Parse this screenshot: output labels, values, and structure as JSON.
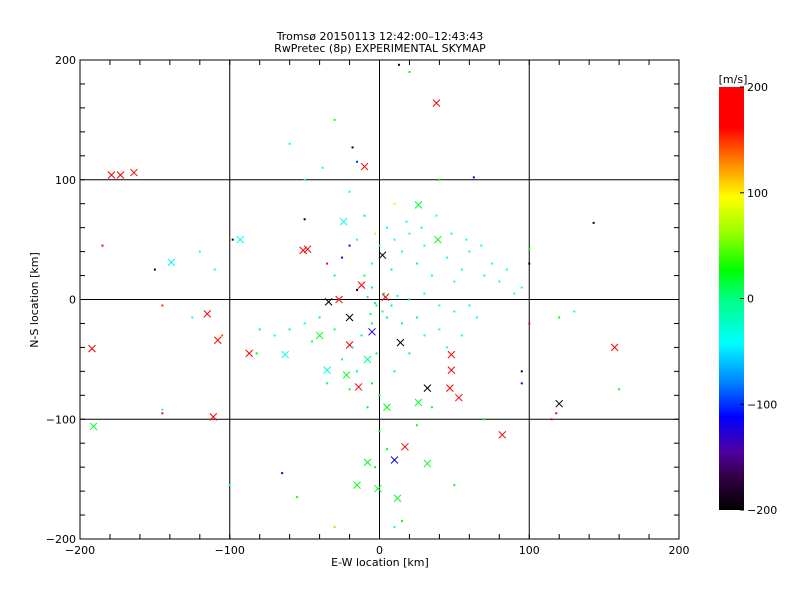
{
  "chart_data": {
    "type": "scatter",
    "title": "Tromsø 20150113 12:42:00–12:43:43",
    "subtitle": "RwPretec (8p) EXPERIMENTAL SKYMAP",
    "xlabel": "E-W location [km]",
    "ylabel": "N-S location [km]",
    "xlim": [
      -200,
      200
    ],
    "ylim": [
      -200,
      200
    ],
    "xticks": [
      "−200",
      "−100",
      "0",
      "100",
      "200"
    ],
    "yticks": [
      "−200",
      "−100",
      "0",
      "100",
      "200"
    ],
    "xtick_values": [
      -200,
      -100,
      0,
      100,
      200
    ],
    "ytick_values": [
      -200,
      -100,
      0,
      100,
      200
    ],
    "grid": true,
    "colorbar": {
      "label": "[m/s]",
      "range": [
        -200,
        200
      ],
      "ticks": [
        "200",
        "100",
        "0",
        "−100",
        "−200"
      ],
      "tick_values": [
        200,
        100,
        0,
        -100,
        -200
      ],
      "stops": [
        [
          -200,
          "#000000"
        ],
        [
          -170,
          "#300040"
        ],
        [
          -145,
          "#5000a0"
        ],
        [
          -112,
          "#0000ff"
        ],
        [
          -80,
          "#0080ff"
        ],
        [
          -42,
          "#00ffff"
        ],
        [
          0,
          "#00ff80"
        ],
        [
          27,
          "#00ff00"
        ],
        [
          60,
          "#90ff00"
        ],
        [
          96,
          "#ffff00"
        ],
        [
          130,
          "#ff8000"
        ],
        [
          162,
          "#ff0000"
        ],
        [
          200,
          "#ff0000"
        ]
      ]
    },
    "marker_legend": "x = large echo, d = small point",
    "points": [
      [
        38,
        164,
        200,
        "x"
      ],
      [
        -10,
        111,
        200,
        "x"
      ],
      [
        -179,
        104,
        200,
        "x"
      ],
      [
        -173,
        104,
        200,
        "x"
      ],
      [
        -164,
        106,
        200,
        "x"
      ],
      [
        -93,
        50,
        -40,
        "x"
      ],
      [
        -139,
        31,
        -45,
        "x"
      ],
      [
        -48,
        42,
        200,
        "x"
      ],
      [
        -51,
        41,
        180,
        "x"
      ],
      [
        -24,
        65,
        -40,
        "x"
      ],
      [
        2,
        37,
        -200,
        "x"
      ],
      [
        -34,
        -2,
        -200,
        "x"
      ],
      [
        -115,
        -12,
        200,
        "x"
      ],
      [
        -108,
        -34,
        200,
        "x"
      ],
      [
        -87,
        -45,
        200,
        "x"
      ],
      [
        -192,
        -41,
        200,
        "x"
      ],
      [
        -191,
        -106,
        20,
        "x"
      ],
      [
        -111,
        -98,
        200,
        "x"
      ],
      [
        14,
        -36,
        -200,
        "x"
      ],
      [
        32,
        -74,
        -200,
        "x"
      ],
      [
        48,
        -46,
        200,
        "x"
      ],
      [
        48,
        -59,
        200,
        "x"
      ],
      [
        47,
        -74,
        200,
        "x"
      ],
      [
        53,
        -82,
        200,
        "x"
      ],
      [
        82,
        -113,
        200,
        "x"
      ],
      [
        120,
        -87,
        -200,
        "x"
      ],
      [
        157,
        -40,
        200,
        "x"
      ],
      [
        17,
        -123,
        200,
        "x"
      ],
      [
        32,
        -137,
        20,
        "x"
      ],
      [
        10,
        -134,
        -115,
        "x"
      ],
      [
        -14,
        -73,
        200,
        "x"
      ],
      [
        -20,
        -38,
        200,
        "x"
      ],
      [
        26,
        -86,
        20,
        "x"
      ],
      [
        5,
        -90,
        20,
        "x"
      ],
      [
        -22,
        -63,
        20,
        "x"
      ],
      [
        -35,
        -59,
        -30,
        "x"
      ],
      [
        -63,
        -46,
        -40,
        "x"
      ],
      [
        12,
        -166,
        20,
        "x"
      ],
      [
        -1,
        -158,
        20,
        "x"
      ],
      [
        -8,
        -136,
        20,
        "x"
      ],
      [
        -15,
        -155,
        20,
        "x"
      ],
      [
        39,
        50,
        20,
        "x"
      ],
      [
        26,
        79,
        20,
        "x"
      ],
      [
        -12,
        12,
        200,
        "x"
      ],
      [
        -27,
        0,
        200,
        "x"
      ],
      [
        -20,
        -15,
        -200,
        "x"
      ],
      [
        4,
        2,
        200,
        "x"
      ],
      [
        -5,
        -27,
        -120,
        "x"
      ],
      [
        -8,
        -50,
        0,
        "x"
      ],
      [
        -40,
        -30,
        20,
        "x"
      ],
      [
        -15,
        8,
        -200,
        "d"
      ],
      [
        13,
        196,
        -200,
        "d"
      ],
      [
        20,
        190,
        20,
        "d"
      ],
      [
        -18,
        127,
        -200,
        "d"
      ],
      [
        -15,
        115,
        -100,
        "d"
      ],
      [
        -50,
        67,
        -200,
        "d"
      ],
      [
        -98,
        50,
        -200,
        "d"
      ],
      [
        -150,
        25,
        -200,
        "d"
      ],
      [
        -185,
        45,
        180,
        "d"
      ],
      [
        -120,
        40,
        -40,
        "d"
      ],
      [
        -110,
        25,
        -40,
        "d"
      ],
      [
        -145,
        -5,
        150,
        "d"
      ],
      [
        -105,
        -30,
        140,
        "d"
      ],
      [
        -145,
        -95,
        200,
        "d"
      ],
      [
        -145,
        -92,
        -40,
        "d"
      ],
      [
        -125,
        -15,
        -40,
        "d"
      ],
      [
        -82,
        -45,
        20,
        "d"
      ],
      [
        -65,
        -145,
        -112,
        "d"
      ],
      [
        -55,
        -165,
        20,
        "d"
      ],
      [
        -30,
        -190,
        60,
        "d"
      ],
      [
        -100,
        -155,
        -40,
        "d"
      ],
      [
        10,
        -190,
        -40,
        "d"
      ],
      [
        15,
        -185,
        20,
        "d"
      ],
      [
        50,
        -155,
        20,
        "d"
      ],
      [
        70,
        -100,
        20,
        "d"
      ],
      [
        95,
        -60,
        -200,
        "d"
      ],
      [
        95,
        -70,
        -112,
        "d"
      ],
      [
        115,
        -100,
        200,
        "d"
      ],
      [
        118,
        -95,
        200,
        "d"
      ],
      [
        100,
        -20,
        200,
        "d"
      ],
      [
        120,
        -15,
        20,
        "d"
      ],
      [
        130,
        -10,
        -40,
        "d"
      ],
      [
        160,
        -75,
        20,
        "d"
      ],
      [
        143,
        64,
        -200,
        "d"
      ],
      [
        100,
        30,
        -200,
        "d"
      ],
      [
        100,
        42,
        20,
        "d"
      ],
      [
        95,
        10,
        -40,
        "d"
      ],
      [
        63,
        102,
        -112,
        "d"
      ],
      [
        40,
        100,
        20,
        "d"
      ],
      [
        -30,
        150,
        20,
        "d"
      ],
      [
        -60,
        130,
        -40,
        "d"
      ],
      [
        -50,
        100,
        -40,
        "d"
      ],
      [
        -20,
        90,
        -40,
        "d"
      ],
      [
        10,
        80,
        100,
        "d"
      ],
      [
        -38,
        110,
        -40,
        "d"
      ],
      [
        -10,
        70,
        0,
        "d"
      ],
      [
        5,
        60,
        -40,
        "d"
      ],
      [
        20,
        55,
        -40,
        "d"
      ],
      [
        30,
        45,
        -40,
        "d"
      ],
      [
        45,
        35,
        -40,
        "d"
      ],
      [
        55,
        25,
        -40,
        "d"
      ],
      [
        60,
        40,
        -40,
        "d"
      ],
      [
        70,
        20,
        -40,
        "d"
      ],
      [
        80,
        15,
        -40,
        "d"
      ],
      [
        50,
        15,
        -40,
        "d"
      ],
      [
        35,
        20,
        -40,
        "d"
      ],
      [
        25,
        30,
        0,
        "d"
      ],
      [
        15,
        40,
        -40,
        "d"
      ],
      [
        8,
        25,
        0,
        "d"
      ],
      [
        -5,
        30,
        -40,
        "d"
      ],
      [
        -10,
        20,
        0,
        "d"
      ],
      [
        -5,
        10,
        0,
        "d"
      ],
      [
        3,
        5,
        0,
        "d"
      ],
      [
        8,
        -5,
        0,
        "d"
      ],
      [
        -3,
        -3,
        0,
        "d"
      ],
      [
        -8,
        2,
        0,
        "d"
      ],
      [
        12,
        3,
        -40,
        "d"
      ],
      [
        20,
        0,
        0,
        "d"
      ],
      [
        30,
        5,
        -40,
        "d"
      ],
      [
        40,
        -5,
        -40,
        "d"
      ],
      [
        50,
        -10,
        -40,
        "d"
      ],
      [
        60,
        -5,
        -40,
        "d"
      ],
      [
        25,
        -15,
        0,
        "d"
      ],
      [
        15,
        -20,
        0,
        "d"
      ],
      [
        5,
        -15,
        0,
        "d"
      ],
      [
        -5,
        -20,
        0,
        "d"
      ],
      [
        -12,
        -30,
        0,
        "d"
      ],
      [
        -18,
        -40,
        0,
        "d"
      ],
      [
        -25,
        -50,
        0,
        "d"
      ],
      [
        -30,
        -25,
        0,
        "d"
      ],
      [
        -40,
        -15,
        0,
        "d"
      ],
      [
        -50,
        -20,
        -40,
        "d"
      ],
      [
        -60,
        -25,
        0,
        "d"
      ],
      [
        -70,
        -30,
        -40,
        "d"
      ],
      [
        -80,
        -25,
        0,
        "d"
      ],
      [
        -45,
        -35,
        0,
        "d"
      ],
      [
        -15,
        -60,
        0,
        "d"
      ],
      [
        -5,
        -70,
        20,
        "d"
      ],
      [
        0,
        -80,
        20,
        "d"
      ],
      [
        10,
        -60,
        0,
        "d"
      ],
      [
        20,
        -45,
        0,
        "d"
      ],
      [
        30,
        -30,
        -40,
        "d"
      ],
      [
        40,
        -25,
        -40,
        "d"
      ],
      [
        -2,
        -45,
        0,
        "d"
      ],
      [
        -8,
        -90,
        20,
        "d"
      ],
      [
        -20,
        -75,
        20,
        "d"
      ],
      [
        -35,
        -70,
        0,
        "d"
      ],
      [
        0,
        -110,
        20,
        "d"
      ],
      [
        5,
        -125,
        20,
        "d"
      ],
      [
        -3,
        -140,
        20,
        "d"
      ],
      [
        25,
        -105,
        20,
        "d"
      ],
      [
        35,
        -90,
        20,
        "d"
      ],
      [
        45,
        -40,
        -40,
        "d"
      ],
      [
        55,
        -30,
        -40,
        "d"
      ],
      [
        65,
        -15,
        -40,
        "d"
      ],
      [
        -30,
        20,
        0,
        "d"
      ],
      [
        -25,
        35,
        -112,
        "d"
      ],
      [
        -35,
        30,
        200,
        "d"
      ],
      [
        -20,
        45,
        -112,
        "d"
      ],
      [
        -15,
        50,
        -40,
        "d"
      ],
      [
        10,
        50,
        -40,
        "d"
      ],
      [
        0,
        45,
        -40,
        "d"
      ],
      [
        -3,
        55,
        100,
        "d"
      ],
      [
        18,
        65,
        -40,
        "d"
      ],
      [
        28,
        60,
        -40,
        "d"
      ],
      [
        38,
        70,
        -40,
        "d"
      ],
      [
        48,
        55,
        -40,
        "d"
      ],
      [
        58,
        50,
        -40,
        "d"
      ],
      [
        68,
        45,
        -40,
        "d"
      ],
      [
        75,
        30,
        -40,
        "d"
      ],
      [
        85,
        25,
        -40,
        "d"
      ],
      [
        90,
        5,
        -40,
        "d"
      ],
      [
        -2,
        -5,
        0,
        "d"
      ],
      [
        2,
        -10,
        0,
        "d"
      ],
      [
        -6,
        -12,
        0,
        "d"
      ]
    ]
  }
}
